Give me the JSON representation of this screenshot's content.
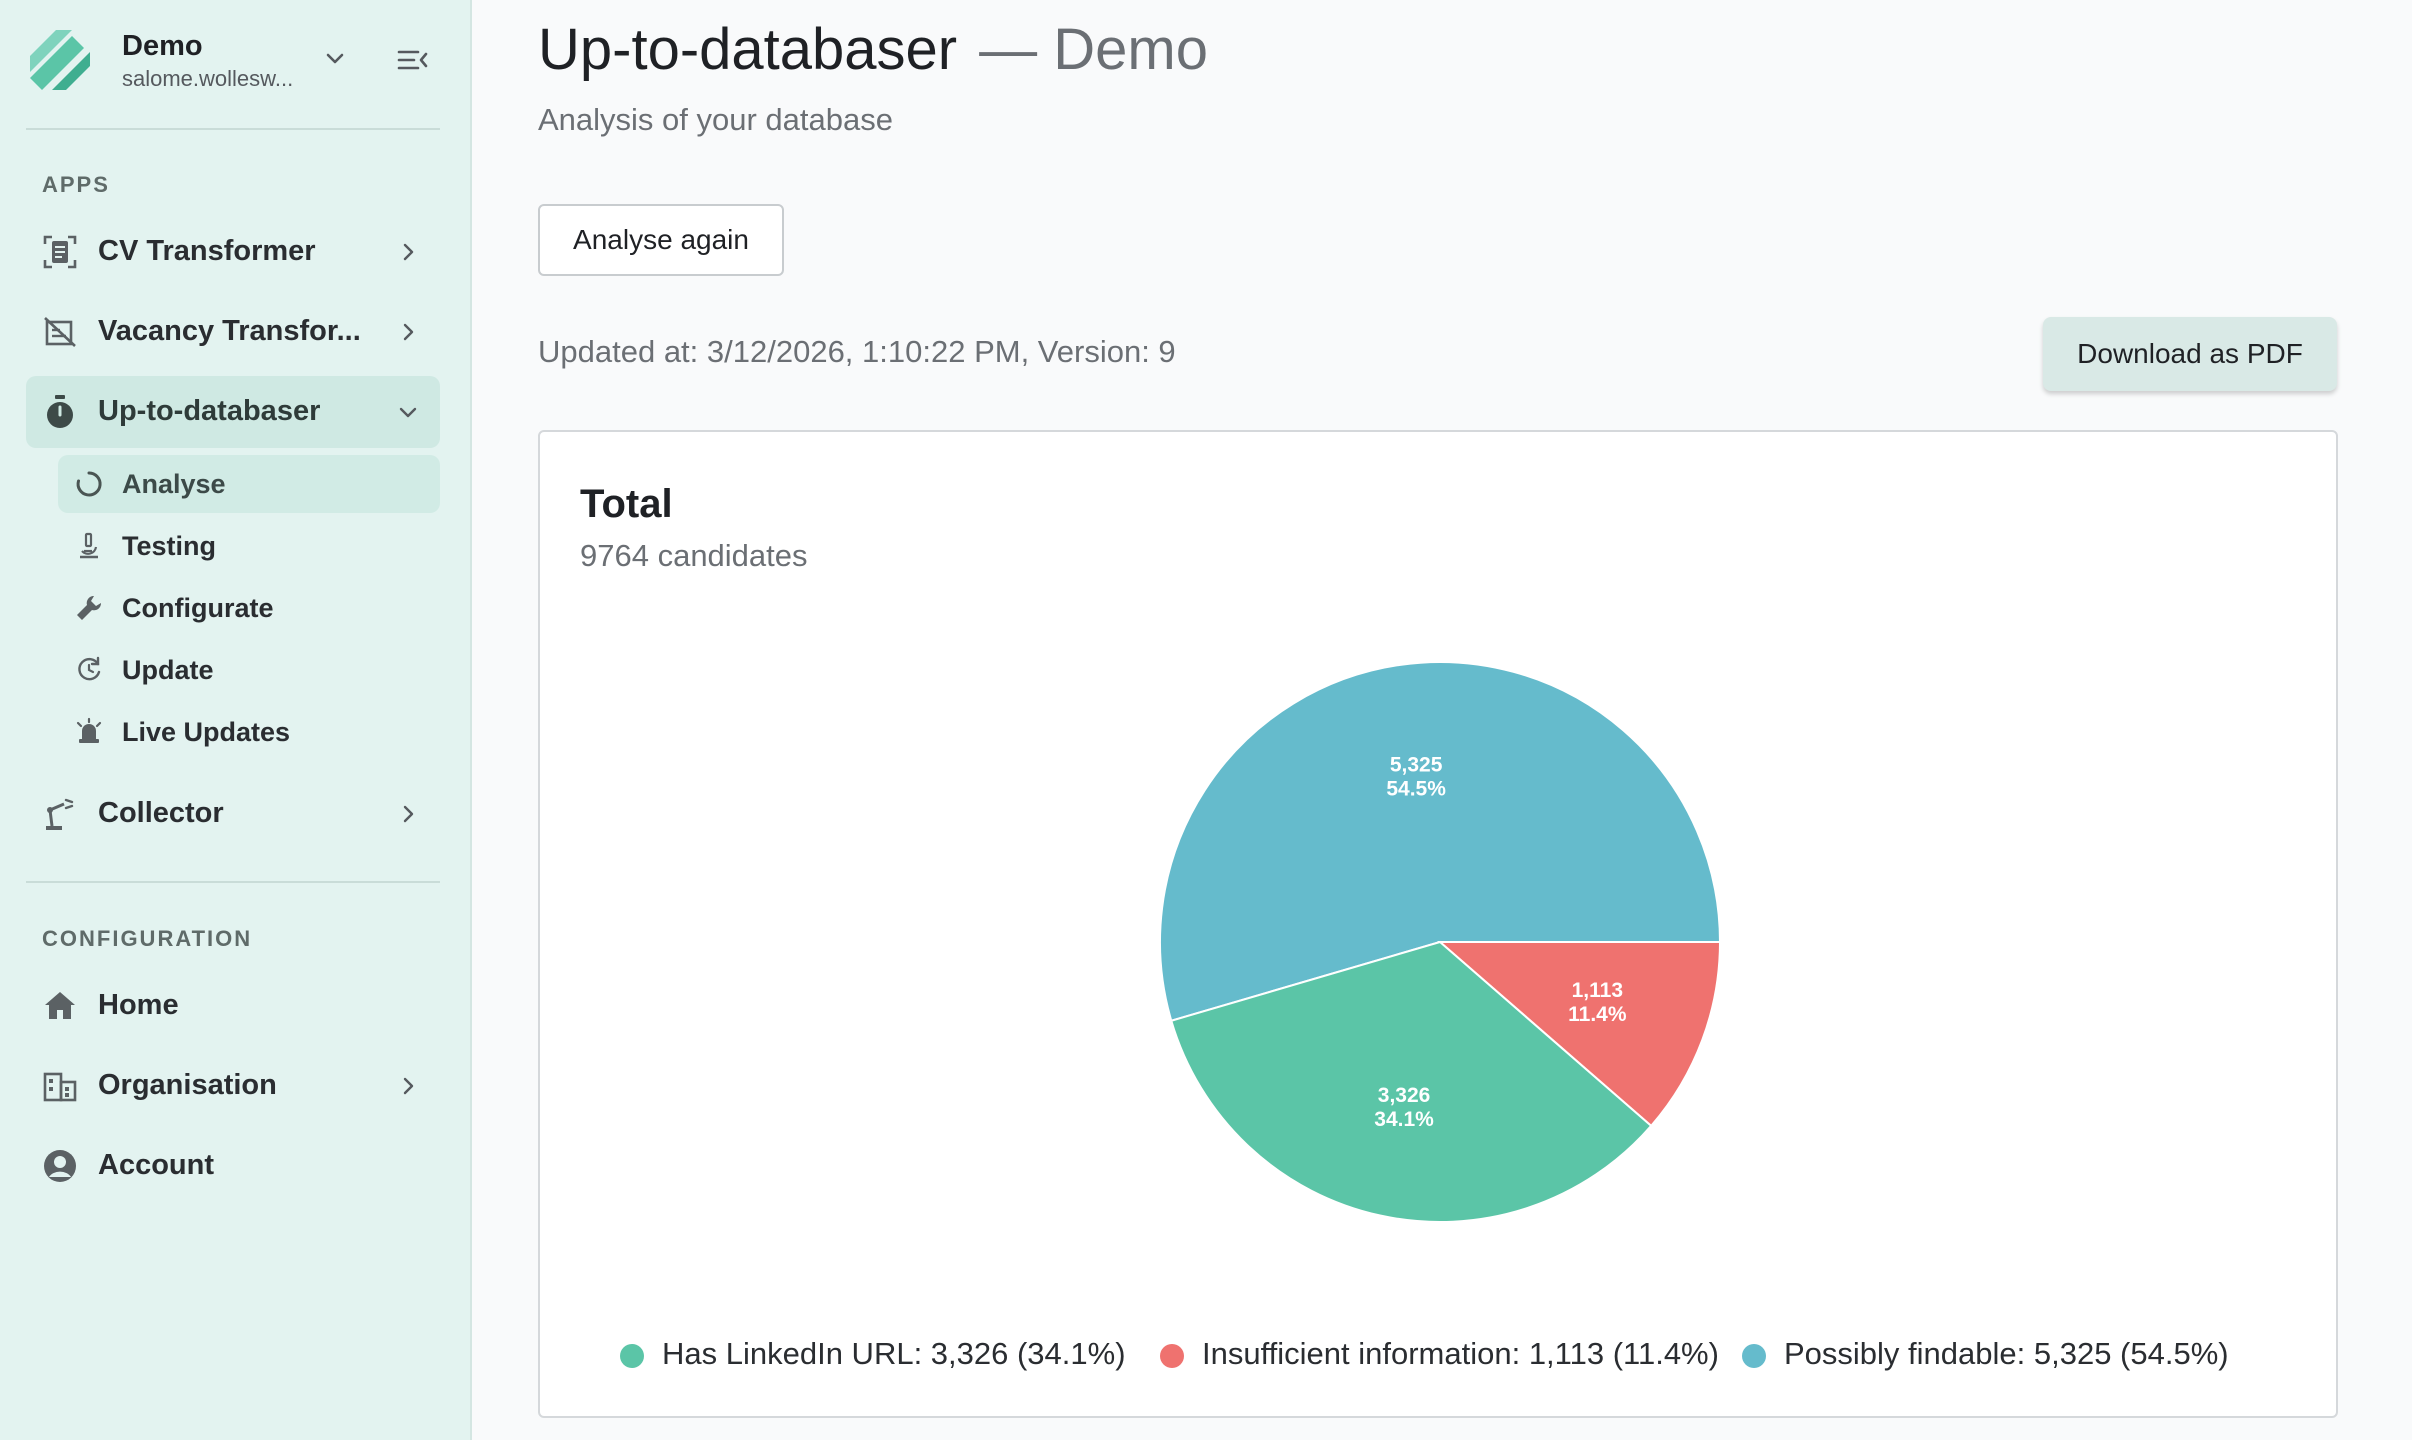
{
  "sidebar": {
    "org_name": "Demo",
    "org_email": "salome.wollesw...",
    "apps_label": "APPS",
    "config_label": "CONFIGURATION",
    "apps": [
      {
        "label": "CV Transformer",
        "icon": "document-scan-icon"
      },
      {
        "label": "Vacancy Transfor...",
        "icon": "vacancy-icon"
      },
      {
        "label": "Up-to-databaser",
        "icon": "stopwatch-icon"
      },
      {
        "label": "Collector",
        "icon": "robot-arm-icon"
      }
    ],
    "sub_items": [
      {
        "label": "Analyse",
        "icon": "circle-progress-icon"
      },
      {
        "label": "Testing",
        "icon": "microscope-icon"
      },
      {
        "label": "Configurate",
        "icon": "wrench-icon"
      },
      {
        "label": "Update",
        "icon": "refresh-clock-icon"
      },
      {
        "label": "Live Updates",
        "icon": "alarm-bell-icon"
      }
    ],
    "config": [
      {
        "label": "Home",
        "icon": "home-icon"
      },
      {
        "label": "Organisation",
        "icon": "building-icon"
      },
      {
        "label": "Account",
        "icon": "account-icon"
      }
    ]
  },
  "main": {
    "title": "Up-to-databaser",
    "title_suffix": "— Demo",
    "subtitle": "Analysis of your database",
    "analyse_button": "Analyse again",
    "updated_text": "Updated at: 3/12/2026, 1:10:22 PM, Version: 9",
    "pdf_button": "Download as PDF"
  },
  "colors": {
    "linkedin": "#5bc5a7",
    "insufficient": "#ef726f",
    "findable": "#65bbcc",
    "accent": "#cfe9e3"
  },
  "chart_data": {
    "type": "pie",
    "title": "Total",
    "subtitle": "9764 candidates",
    "slices": [
      {
        "name": "Possibly findable",
        "value": 5325,
        "percent": "54.5%",
        "value_label": "5,325",
        "legend": "Possibly findable: 5,325 (54.5%)"
      },
      {
        "name": "Insufficient information",
        "value": 1113,
        "percent": "11.4%",
        "value_label": "1,113",
        "legend": "Insufficient information: 1,113 (11.4%)"
      },
      {
        "name": "Has LinkedIn URL",
        "value": 3326,
        "percent": "34.1%",
        "value_label": "3,326",
        "legend": "Has LinkedIn URL: 3,326 (34.1%)"
      }
    ],
    "legend_order": [
      "Has LinkedIn URL",
      "Insufficient information",
      "Possibly findable"
    ],
    "legend_placement": "bottom"
  }
}
